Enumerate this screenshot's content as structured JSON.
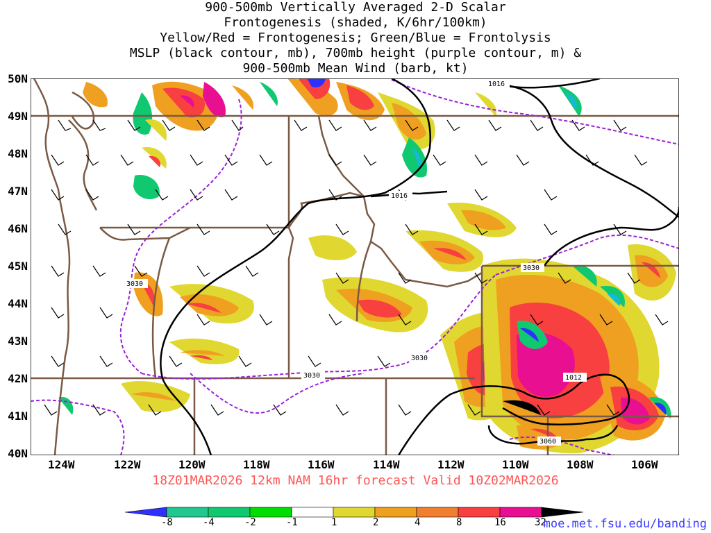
{
  "title_lines": [
    "900-500mb Vertically Averaged 2-D Scalar",
    "Frontogenesis (shaded, K/6hr/100km)",
    "Yellow/Red = Frontogenesis;  Green/Blue = Frontolysis",
    "MSLP (black contour, mb), 700mb height (purple contour, m) &",
    "900-500mb Mean Wind (barb, kt)"
  ],
  "lat_labels": [
    "50N",
    "49N",
    "48N",
    "47N",
    "46N",
    "45N",
    "44N",
    "43N",
    "42N",
    "41N",
    "40N"
  ],
  "lon_labels": [
    "124W",
    "122W",
    "120W",
    "118W",
    "116W",
    "114W",
    "112W",
    "110W",
    "108W",
    "106W"
  ],
  "valid_line": "18Z01MAR2026 12km NAM 16hr forecast Valid 10Z02MAR2026",
  "credit": "moe.met.fsu.edu/banding",
  "contour_labels": {
    "mslp": [
      "1016",
      "1016",
      "1012"
    ],
    "height": [
      "3030",
      "3030",
      "3030",
      "3030",
      "3060"
    ]
  },
  "colorbar": {
    "labels": [
      "-8",
      "-4",
      "-2",
      "-1",
      "1",
      "2",
      "4",
      "8",
      "16",
      "32"
    ],
    "colors": [
      "#2f2fff",
      "#18b8d8",
      "#20c890",
      "#10c870",
      "#00dd00",
      "#ffffff",
      "#e0d830",
      "#f0a020",
      "#f08030",
      "#f84040",
      "#e81090",
      "#000000",
      "#b0b0b0"
    ]
  },
  "colors": {
    "border": "#7a5a44",
    "mslp": "#000000",
    "height": "#9a20d8"
  }
}
